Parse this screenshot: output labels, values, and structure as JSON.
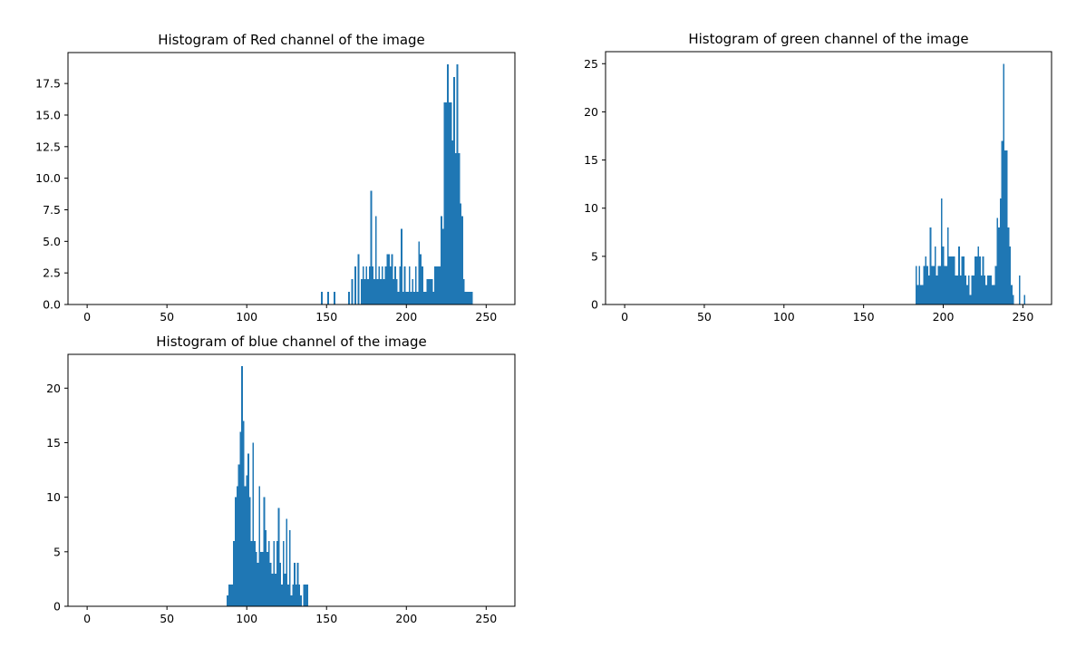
{
  "colors": {
    "bar": "#1f77b4",
    "axes": "#000000",
    "background": "#ffffff"
  },
  "chart_data": [
    {
      "type": "bar",
      "title": "Histogram of Red channel of the image",
      "xlabel": "",
      "ylabel": "",
      "xlim": [
        -12,
        268
      ],
      "ylim": [
        0,
        19.95
      ],
      "xticks": [
        0,
        50,
        100,
        150,
        200,
        250
      ],
      "xtick_labels": [
        "0",
        "50",
        "100",
        "150",
        "200",
        "250"
      ],
      "yticks": [
        0,
        2.5,
        5,
        7.5,
        10,
        12.5,
        15,
        17.5
      ],
      "ytick_labels": [
        "0.0",
        "2.5",
        "5.0",
        "7.5",
        "10.0",
        "12.5",
        "15.0",
        "17.5"
      ],
      "grid": false,
      "bin_width": 1,
      "x": [
        147,
        151,
        155,
        164,
        166,
        168,
        170,
        172,
        173,
        174,
        175,
        176,
        177,
        178,
        179,
        180,
        181,
        182,
        183,
        184,
        185,
        186,
        187,
        188,
        189,
        190,
        191,
        192,
        193,
        194,
        195,
        196,
        197,
        198,
        199,
        200,
        201,
        202,
        203,
        204,
        205,
        206,
        207,
        208,
        209,
        210,
        211,
        212,
        213,
        214,
        215,
        216,
        217,
        218,
        219,
        220,
        221,
        222,
        223,
        224,
        225,
        226,
        227,
        228,
        229,
        230,
        231,
        232,
        233,
        234,
        235,
        236,
        237,
        238,
        239,
        240,
        241
      ],
      "values": [
        1,
        1,
        1,
        1,
        2,
        3,
        4,
        2,
        3,
        2,
        3,
        2,
        3,
        9,
        3,
        2,
        7,
        2,
        3,
        2,
        3,
        2,
        3,
        4,
        4,
        3,
        4,
        2,
        3,
        2,
        1,
        3,
        6,
        1,
        3,
        1,
        1,
        3,
        1,
        2,
        1,
        3,
        1,
        5,
        4,
        3,
        1,
        1,
        2,
        2,
        2,
        2,
        1,
        3,
        3,
        3,
        3,
        7,
        6,
        16,
        16,
        19,
        16,
        16,
        13,
        18,
        12,
        19,
        12,
        8,
        7,
        2,
        1,
        1,
        1,
        1,
        1
      ]
    },
    {
      "type": "bar",
      "title": "Histogram of green channel of the image",
      "xlabel": "",
      "ylabel": "",
      "xlim": [
        -12,
        268
      ],
      "ylim": [
        0,
        26.25
      ],
      "xticks": [
        0,
        50,
        100,
        150,
        200,
        250
      ],
      "xtick_labels": [
        "0",
        "50",
        "100",
        "150",
        "200",
        "250"
      ],
      "yticks": [
        0,
        5,
        10,
        15,
        20,
        25
      ],
      "ytick_labels": [
        "0",
        "5",
        "10",
        "15",
        "20",
        "25"
      ],
      "grid": false,
      "bin_width": 1,
      "x": [
        183,
        184,
        185,
        186,
        187,
        188,
        189,
        190,
        191,
        192,
        193,
        194,
        195,
        196,
        197,
        198,
        199,
        200,
        201,
        202,
        203,
        204,
        205,
        206,
        207,
        208,
        209,
        210,
        211,
        212,
        213,
        214,
        215,
        216,
        217,
        218,
        219,
        220,
        221,
        222,
        223,
        224,
        225,
        226,
        227,
        228,
        229,
        230,
        231,
        232,
        233,
        234,
        235,
        236,
        237,
        238,
        239,
        240,
        241,
        242,
        243,
        244,
        245,
        246,
        247,
        248,
        249,
        250,
        251,
        252,
        253
      ],
      "values": [
        4,
        2,
        4,
        2,
        2,
        4,
        5,
        4,
        3,
        8,
        4,
        4,
        6,
        3,
        4,
        4,
        11,
        6,
        4,
        4,
        8,
        5,
        5,
        5,
        5,
        3,
        3,
        6,
        3,
        5,
        5,
        3,
        2,
        3,
        1,
        3,
        3,
        5,
        5,
        6,
        5,
        3,
        5,
        3,
        2,
        3,
        3,
        3,
        2,
        2,
        4,
        9,
        8,
        11,
        17,
        25,
        16,
        16,
        8,
        6,
        2,
        1,
        0,
        0,
        0,
        3,
        0,
        0,
        1,
        0,
        0
      ],
      "values_note_free": true
    },
    {
      "type": "bar",
      "title": "Histogram of blue channel of the image",
      "xlabel": "",
      "ylabel": "",
      "xlim": [
        -12,
        268
      ],
      "ylim": [
        0,
        23.1
      ],
      "xticks": [
        0,
        50,
        100,
        150,
        200,
        250
      ],
      "xtick_labels": [
        "0",
        "50",
        "100",
        "150",
        "200",
        "250"
      ],
      "yticks": [
        0,
        5,
        10,
        15,
        20
      ],
      "ytick_labels": [
        "0",
        "5",
        "10",
        "15",
        "20"
      ],
      "grid": false,
      "bin_width": 1,
      "x": [
        88,
        89,
        90,
        91,
        92,
        93,
        94,
        95,
        96,
        97,
        98,
        99,
        100,
        101,
        102,
        103,
        104,
        105,
        106,
        107,
        108,
        109,
        110,
        111,
        112,
        113,
        114,
        115,
        116,
        117,
        118,
        119,
        120,
        121,
        122,
        123,
        124,
        125,
        126,
        127,
        128,
        129,
        130,
        131,
        132,
        133,
        134,
        135,
        136,
        137,
        138,
        139
      ],
      "values": [
        1,
        2,
        2,
        2,
        6,
        10,
        11,
        13,
        16,
        22,
        17,
        11,
        12,
        14,
        10,
        6,
        15,
        6,
        5,
        4,
        11,
        5,
        5,
        10,
        7,
        5,
        6,
        4,
        3,
        6,
        3,
        6,
        9,
        4,
        2,
        6,
        3,
        8,
        2,
        7,
        1,
        2,
        4,
        2,
        4,
        2,
        1,
        0,
        2,
        2,
        2,
        0
      ]
    }
  ]
}
